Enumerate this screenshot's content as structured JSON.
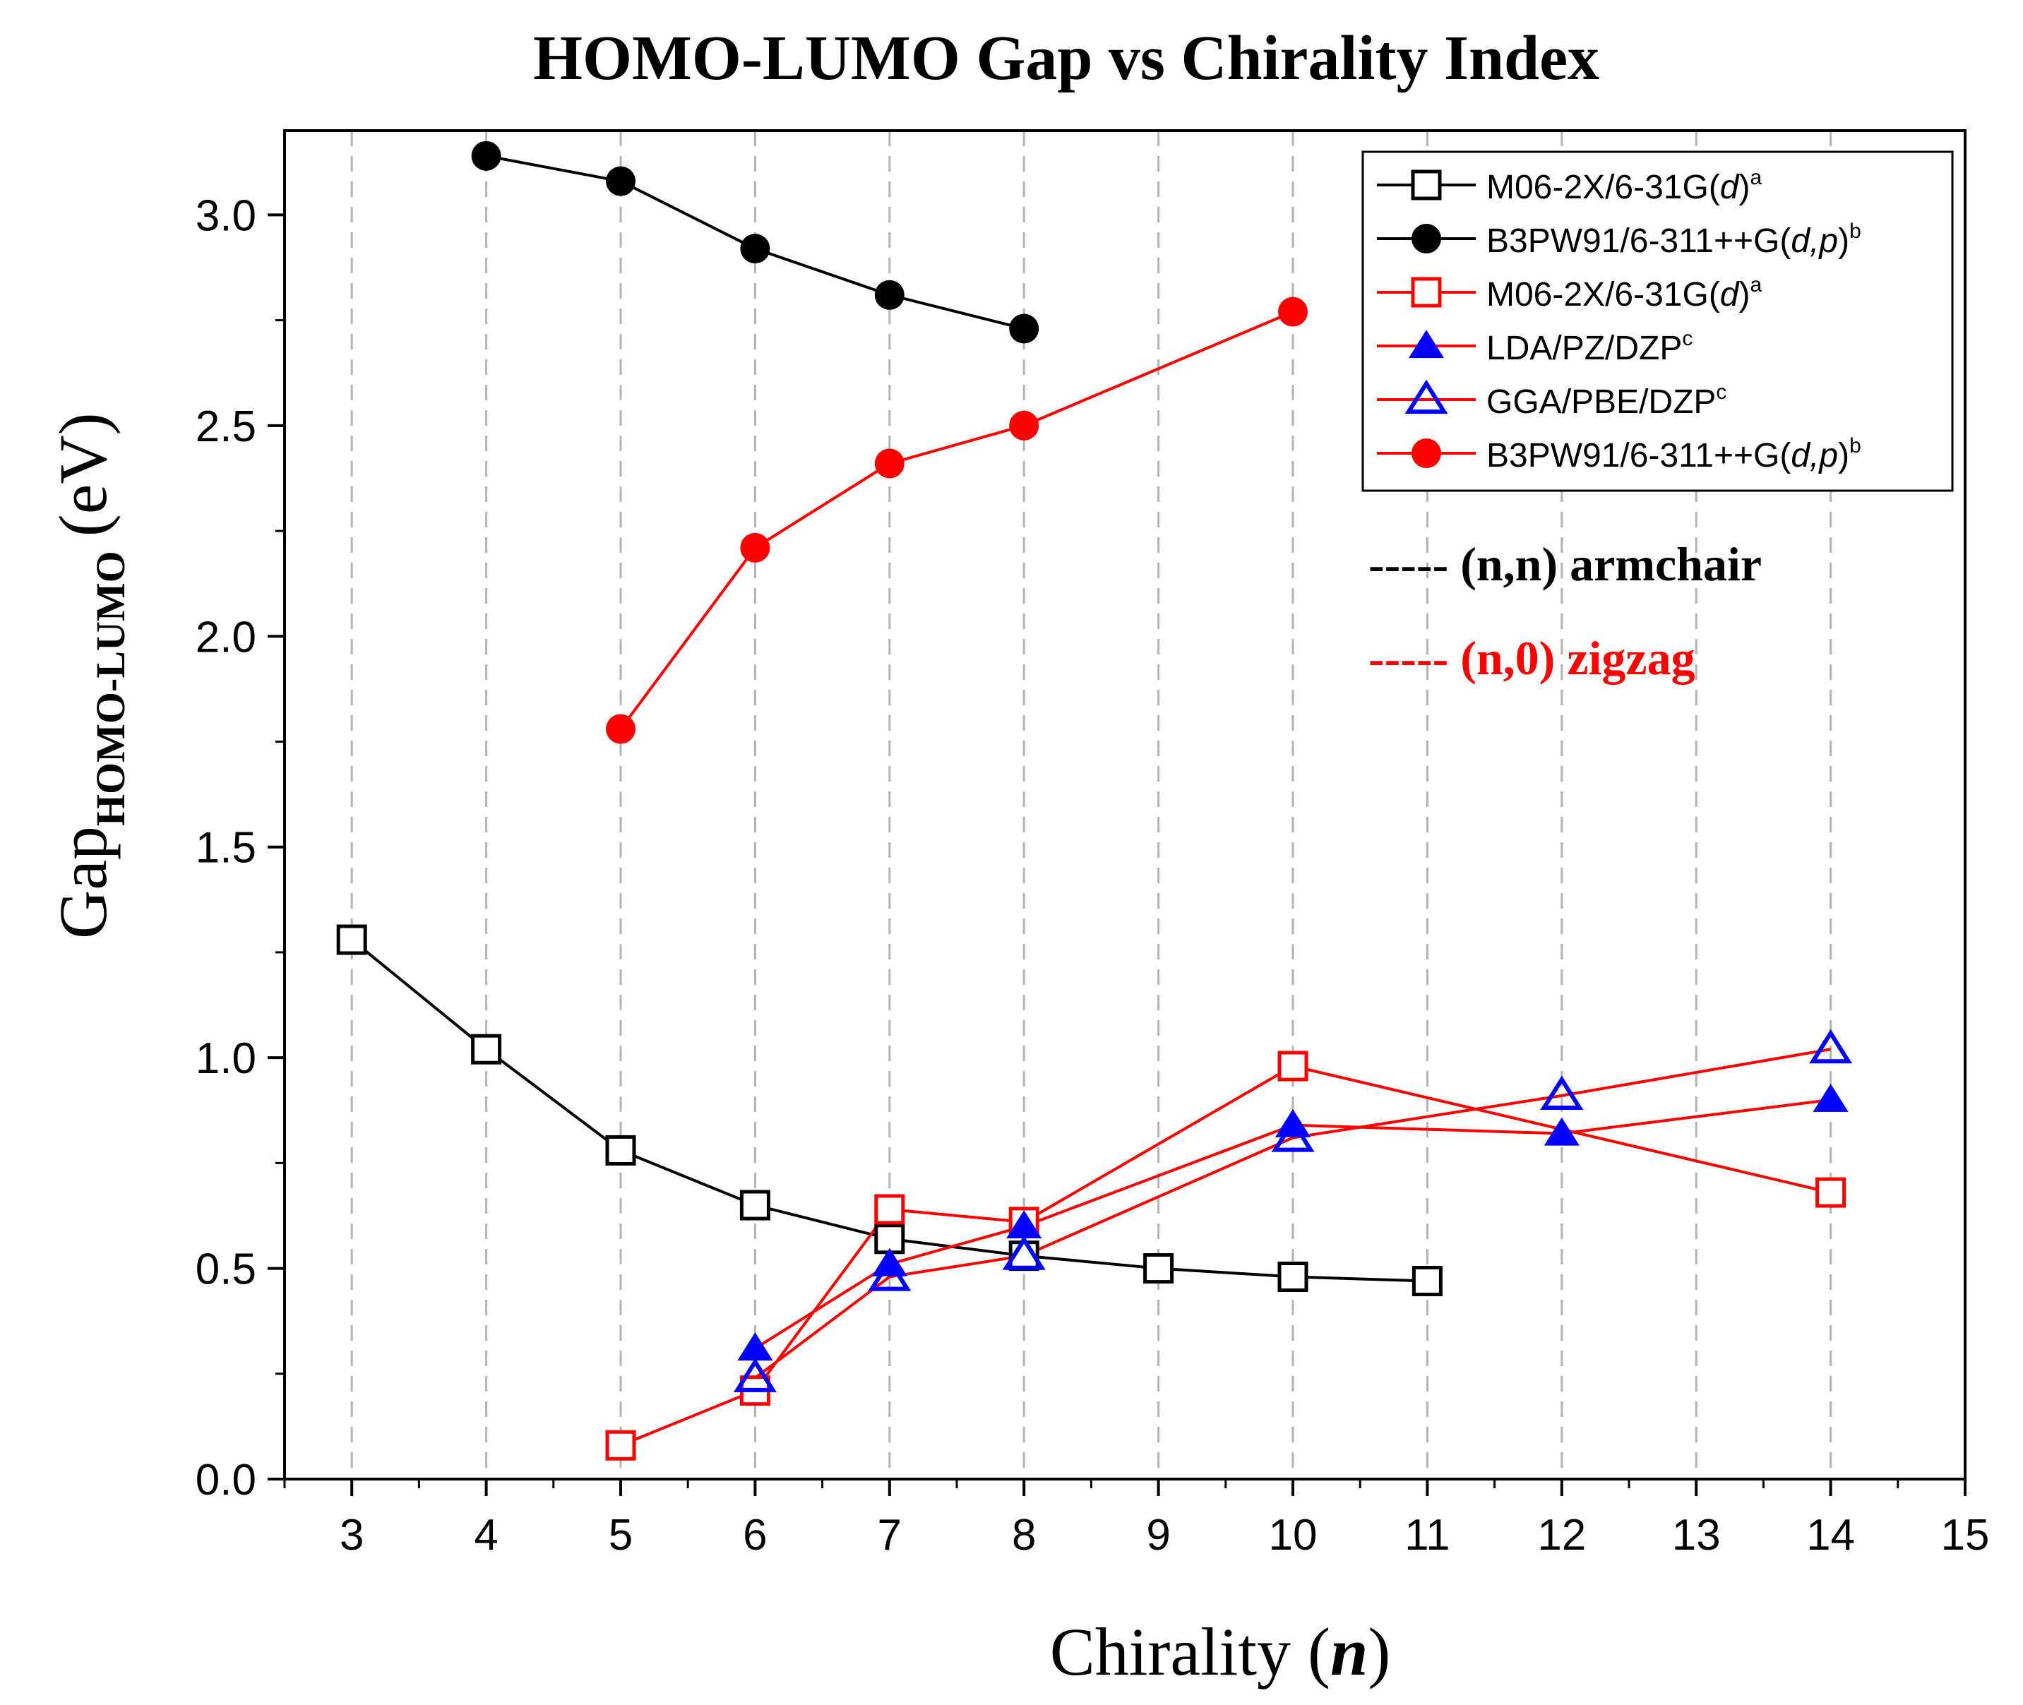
{
  "chart_data": {
    "type": "line",
    "title": "HOMO-LUMO Gap vs Chirality Index",
    "xlabel": {
      "text": "Chirality (",
      "var": "n",
      "close": ")"
    },
    "ylabel": {
      "main": "Gap",
      "sub": "HOMO-LUMO",
      "unit": "(eV)"
    },
    "xlim": [
      2.5,
      15
    ],
    "ylim": [
      0,
      3.2
    ],
    "xticks": [
      3,
      4,
      5,
      6,
      7,
      8,
      9,
      10,
      11,
      12,
      13,
      14,
      15
    ],
    "yticks": [
      0.0,
      0.5,
      1.0,
      1.5,
      2.0,
      2.5,
      3.0
    ],
    "ytick_labels": [
      "0.0",
      "0.5",
      "1.0",
      "1.5",
      "2.0",
      "2.5",
      "3.0"
    ],
    "grid": "vertical dashed at each x tick",
    "series": [
      {
        "name": "M06-2X/6-31G(d)^a",
        "group": "armchair",
        "color": "#000000",
        "marker": "square-open",
        "x": [
          3,
          4,
          5,
          6,
          7,
          8,
          9,
          10,
          11
        ],
        "y": [
          1.28,
          1.02,
          0.78,
          0.65,
          0.57,
          0.53,
          0.5,
          0.48,
          0.47
        ]
      },
      {
        "name": "B3PW91/6-311++G(d,p)^b",
        "group": "armchair",
        "color": "#000000",
        "marker": "circle-filled",
        "x": [
          4,
          5,
          6,
          7,
          8
        ],
        "y": [
          3.14,
          3.08,
          2.92,
          2.81,
          2.73
        ]
      },
      {
        "name": "M06-2X/6-31G(d)^a",
        "group": "zigzag",
        "color": "#ff0000",
        "marker": "square-open",
        "x": [
          5,
          6,
          7,
          8,
          10,
          14
        ],
        "y": [
          0.08,
          0.21,
          0.64,
          0.61,
          0.98,
          0.68
        ]
      },
      {
        "name": "LDA/PZ/DZP^c",
        "group": "zigzag",
        "color": "#ff0000",
        "marker": "triangle-filled",
        "marker_color": "#0000ff",
        "x": [
          6,
          7,
          8,
          10,
          12,
          14
        ],
        "y": [
          0.31,
          0.51,
          0.6,
          0.84,
          0.82,
          0.9
        ]
      },
      {
        "name": "GGA/PBE/DZP^c",
        "group": "zigzag",
        "color": "#ff0000",
        "marker": "triangle-open",
        "marker_color": "#0000ff",
        "x": [
          6,
          7,
          8,
          10,
          12,
          14
        ],
        "y": [
          0.24,
          0.48,
          0.53,
          0.81,
          0.91,
          1.02
        ]
      },
      {
        "name": "B3PW91/6-311++G(d,p)^b",
        "group": "zigzag",
        "color": "#ff0000",
        "marker": "circle-filled",
        "x": [
          5,
          6,
          7,
          8,
          10
        ],
        "y": [
          1.78,
          2.21,
          2.41,
          2.5,
          2.77
        ]
      }
    ],
    "legend": {
      "placement": "top-right",
      "entries": [
        {
          "pre": "M06-2X/6-31G(",
          "it": "d",
          "post": ")",
          "sup": "a"
        },
        {
          "pre": "B3PW91/6-311++G(",
          "it": "d,p",
          "post": ")",
          "sup": "b"
        },
        {
          "pre": "M06-2X/6-31G(",
          "it": "d",
          "post": ")",
          "sup": "a"
        },
        {
          "pre": "LDA/PZ/DZP",
          "it": "",
          "post": "",
          "sup": "c"
        },
        {
          "pre": "GGA/PBE/DZP",
          "it": "",
          "post": "",
          "sup": "c"
        },
        {
          "pre": "B3PW91/6-311++G(",
          "it": "d,p",
          "post": ")",
          "sup": "b"
        }
      ]
    },
    "annotations": [
      {
        "text": "----- (n,n) armchair",
        "color": "#000000"
      },
      {
        "text": "----- (n,0) zigzag",
        "color": "#ff0000"
      }
    ]
  }
}
